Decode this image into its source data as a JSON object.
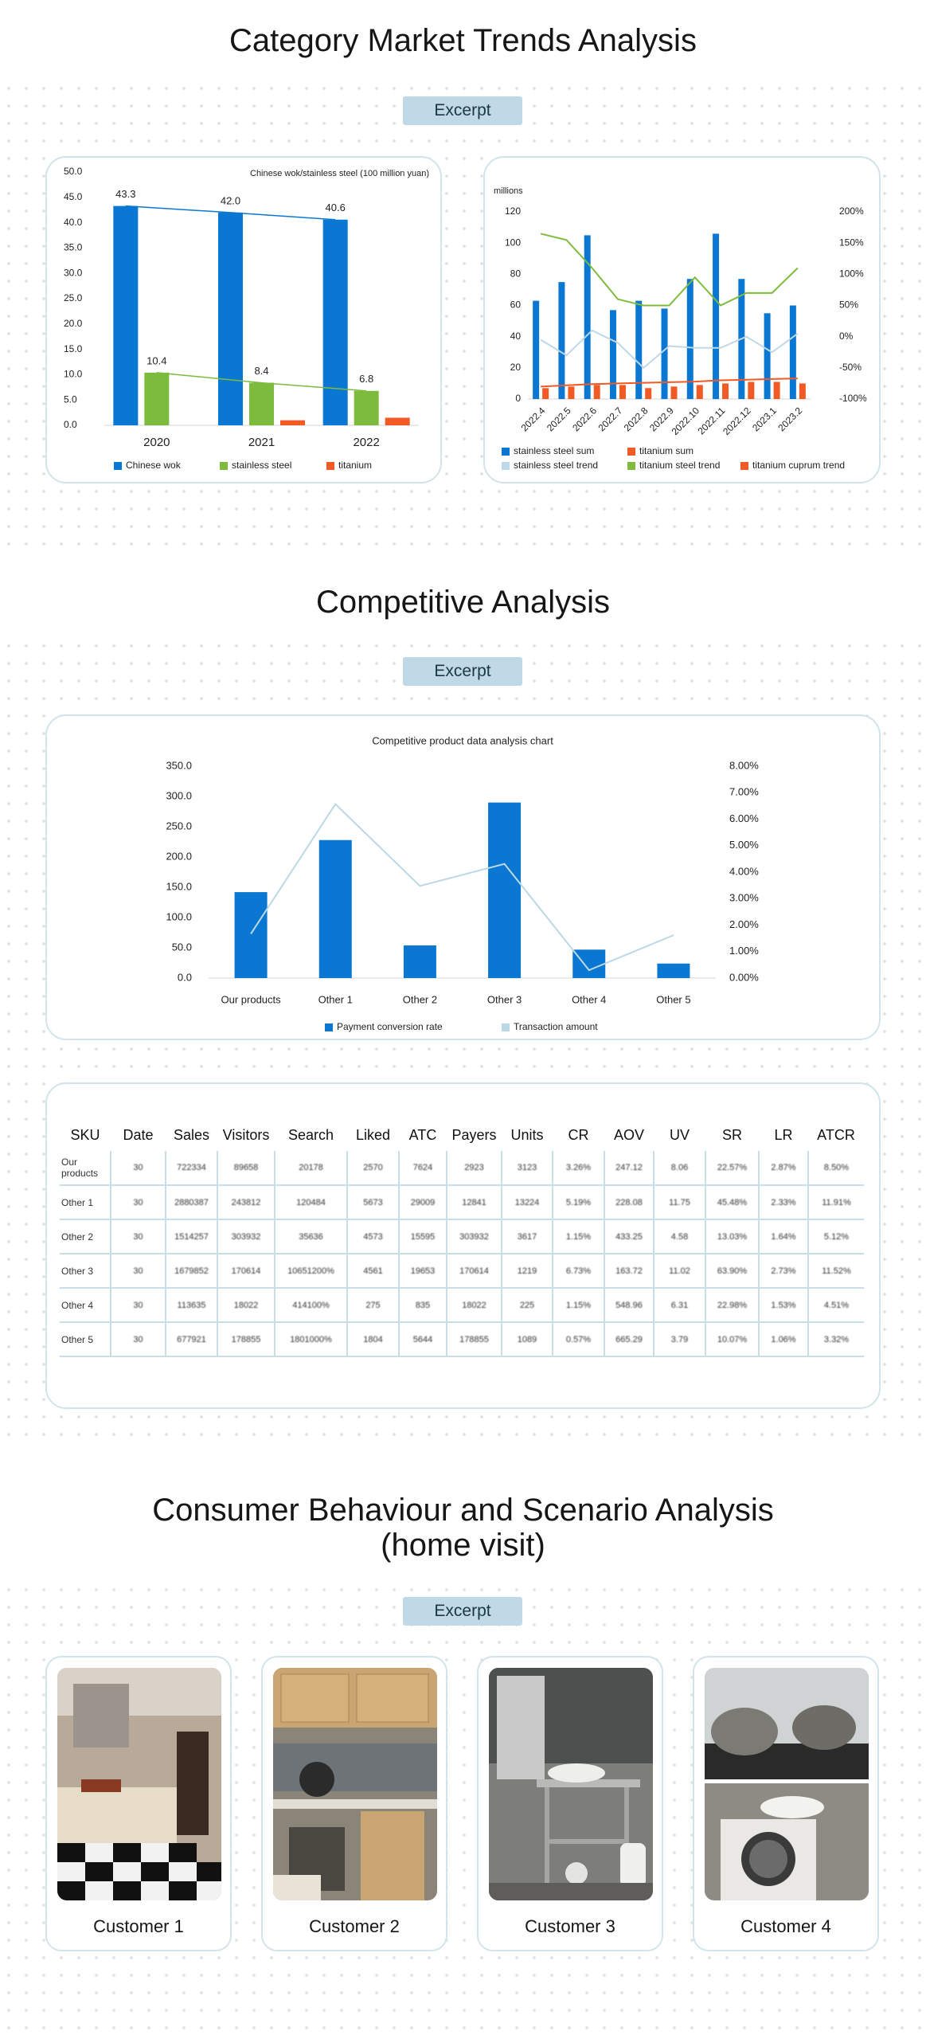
{
  "sections": [
    {
      "title": "Category Market Trends Analysis",
      "badge": "Excerpt"
    },
    {
      "title": "Competitive Analysis",
      "badge": "Excerpt"
    },
    {
      "title_lines": [
        "Consumer Behaviour and Scenario Analysis",
        "(home visit)"
      ],
      "badge": "Excerpt"
    }
  ],
  "chart_data": [
    {
      "type": "bar",
      "title": "Chinese wok/stainless steel (100 million yuan)",
      "categories": [
        "2020",
        "2021",
        "2022"
      ],
      "series": [
        {
          "name": "Chinese wok",
          "color": "#0a78d2",
          "values": [
            43.3,
            42.0,
            40.6
          ],
          "value_labels": [
            "43.3",
            "42.0",
            "40.6"
          ],
          "trendline": true
        },
        {
          "name": "stainless steel",
          "color": "#7dbb3c",
          "values": [
            10.4,
            8.4,
            6.8
          ],
          "value_labels": [
            "10.4",
            "8.4",
            "6.8"
          ],
          "trendline": true
        },
        {
          "name": "titanium",
          "color": "#f15a24",
          "values": [
            0,
            1.0,
            1.5
          ]
        }
      ],
      "ylim": [
        0,
        50
      ],
      "yticks": [
        {
          "value": 0,
          "label": "0.0"
        },
        {
          "value": 5,
          "label": "5.0"
        },
        {
          "value": 10,
          "label": "10.0"
        },
        {
          "value": 15,
          "label": "15.0"
        },
        {
          "value": 20,
          "label": "20.0"
        },
        {
          "value": 25,
          "label": "25.0"
        },
        {
          "value": 30,
          "label": "30.0"
        },
        {
          "value": 35,
          "label": "35.0"
        },
        {
          "value": 40,
          "label": "40.0"
        },
        {
          "value": 45,
          "label": "45.0"
        },
        {
          "value": 50,
          "label": "50.0"
        }
      ],
      "legend": "bottom"
    },
    {
      "type": "combo",
      "y_label": "millions",
      "categories": [
        "2022.4",
        "2022.5",
        "2022.6",
        "2022.7",
        "2022.8",
        "2022.9",
        "2022.10",
        "2022.11",
        "2022.12",
        "2023.1",
        "2023.2"
      ],
      "series": [
        {
          "name": "stainless steel sum",
          "type": "bar",
          "color": "#0a78d2",
          "values": [
            63,
            75,
            105,
            57,
            63,
            58,
            77,
            106,
            77,
            55,
            60
          ]
        },
        {
          "name": "titanium sum",
          "type": "bar",
          "color": "#f15a24",
          "values": [
            7,
            8,
            9,
            9,
            7,
            8,
            9,
            10,
            11,
            11,
            10
          ]
        },
        {
          "name": "stainless steel trend",
          "type": "line",
          "axis": "y2",
          "color": "#bfd8e8",
          "values": [
            -5,
            -30,
            10,
            -10,
            -50,
            -15,
            -18,
            -18,
            0,
            -25,
            5
          ]
        },
        {
          "name": "titanium steel trend",
          "type": "line",
          "axis": "y2",
          "color": "#7dbb3c",
          "values": [
            165,
            155,
            110,
            60,
            50,
            50,
            95,
            50,
            70,
            70,
            110
          ]
        },
        {
          "name": "titanium cuprum trend",
          "type": "line",
          "axis": "y2",
          "color": "#f15a24",
          "values": [
            -80,
            -78,
            -76,
            -75,
            -74,
            -73,
            -72,
            -70,
            -69,
            -68,
            -67
          ]
        }
      ],
      "ylim": [
        0,
        120
      ],
      "yticks": [
        0,
        20,
        40,
        60,
        80,
        100,
        120
      ],
      "y2lim": [
        -100,
        200
      ],
      "y2ticks": [
        {
          "value": -100,
          "label": "-100%"
        },
        {
          "value": -50,
          "label": "-50%"
        },
        {
          "value": 0,
          "label": "0%"
        },
        {
          "value": 50,
          "label": "50%"
        },
        {
          "value": 100,
          "label": "100%"
        },
        {
          "value": 150,
          "label": "150%"
        },
        {
          "value": 200,
          "label": "200%"
        }
      ],
      "legend": "bottom"
    },
    {
      "type": "combo",
      "title": "Competitive product data analysis chart",
      "categories": [
        "Our products",
        "Other 1",
        "Other 2",
        "Other 3",
        "Other 4",
        "Other 5"
      ],
      "series": [
        {
          "name": "Payment conversion rate",
          "type": "bar",
          "color": "#0a78d2",
          "values": [
            142,
            228,
            54,
            290,
            47,
            24
          ]
        },
        {
          "name": "Transaction amount",
          "type": "line",
          "axis": "y2",
          "color": "#bcd7e5",
          "values": [
            1.67,
            6.57,
            3.48,
            4.31,
            0.3,
            1.62
          ]
        }
      ],
      "ylim": [
        0,
        350
      ],
      "yticks": [
        {
          "value": 0,
          "label": "0.0"
        },
        {
          "value": 50,
          "label": "50.0"
        },
        {
          "value": 100,
          "label": "100.0"
        },
        {
          "value": 150,
          "label": "150.0"
        },
        {
          "value": 200,
          "label": "200.0"
        },
        {
          "value": 250,
          "label": "250.0"
        },
        {
          "value": 300,
          "label": "300.0"
        },
        {
          "value": 350,
          "label": "350.0"
        }
      ],
      "y2lim": [
        0,
        8
      ],
      "y2ticks": [
        {
          "value": 0,
          "label": "0.00%"
        },
        {
          "value": 1,
          "label": "1.00%"
        },
        {
          "value": 2,
          "label": "2.00%"
        },
        {
          "value": 3,
          "label": "3.00%"
        },
        {
          "value": 4,
          "label": "4.00%"
        },
        {
          "value": 5,
          "label": "5.00%"
        },
        {
          "value": 6,
          "label": "6.00%"
        },
        {
          "value": 7,
          "label": "7.00%"
        },
        {
          "value": 8,
          "label": "8.00%"
        }
      ],
      "legend": "bottom"
    }
  ],
  "table": {
    "header": [
      "SKU",
      "Date",
      "Sales",
      "Visitors",
      "Search",
      "Liked",
      "ATC",
      "Payers",
      "Units",
      "CR",
      "AOV",
      "UV",
      "SR",
      "LR",
      "ATCR"
    ],
    "rows": [
      [
        "Our products",
        "30",
        "722334",
        "89658",
        "20178",
        "2570",
        "7624",
        "2923",
        "3123",
        "3.26%",
        "247.12",
        "8.06",
        "22.57%",
        "2.87%",
        "8.50%"
      ],
      [
        "Other 1",
        "30",
        "2880387",
        "243812",
        "120484",
        "5673",
        "29009",
        "12841",
        "13224",
        "5.19%",
        "228.08",
        "11.75",
        "45.48%",
        "2.33%",
        "11.91%"
      ],
      [
        "Other 2",
        "30",
        "1514257",
        "303932",
        "35636",
        "4573",
        "15595",
        "303932",
        "3617",
        "1.15%",
        "433.25",
        "4.58",
        "13.03%",
        "1.64%",
        "5.12%"
      ],
      [
        "Other 3",
        "30",
        "1679852",
        "170614",
        "10651200%",
        "4561",
        "19653",
        "170614",
        "1219",
        "6.73%",
        "163.72",
        "11.02",
        "63.90%",
        "2.73%",
        "11.52%"
      ],
      [
        "Other 4",
        "30",
        "113635",
        "18022",
        "414100%",
        "275",
        "835",
        "18022",
        "225",
        "1.15%",
        "548.96",
        "6.31",
        "22.98%",
        "1.53%",
        "4.51%"
      ],
      [
        "Other 5",
        "30",
        "677921",
        "178855",
        "1801000%",
        "1804",
        "5644",
        "178855",
        "1089",
        "0.57%",
        "665.29",
        "3.79",
        "10.07%",
        "1.06%",
        "3.32%"
      ]
    ]
  },
  "customers": [
    {
      "label": "Customer 1"
    },
    {
      "label": "Customer 2"
    },
    {
      "label": "Customer 3"
    },
    {
      "label": "Customer 4"
    }
  ]
}
